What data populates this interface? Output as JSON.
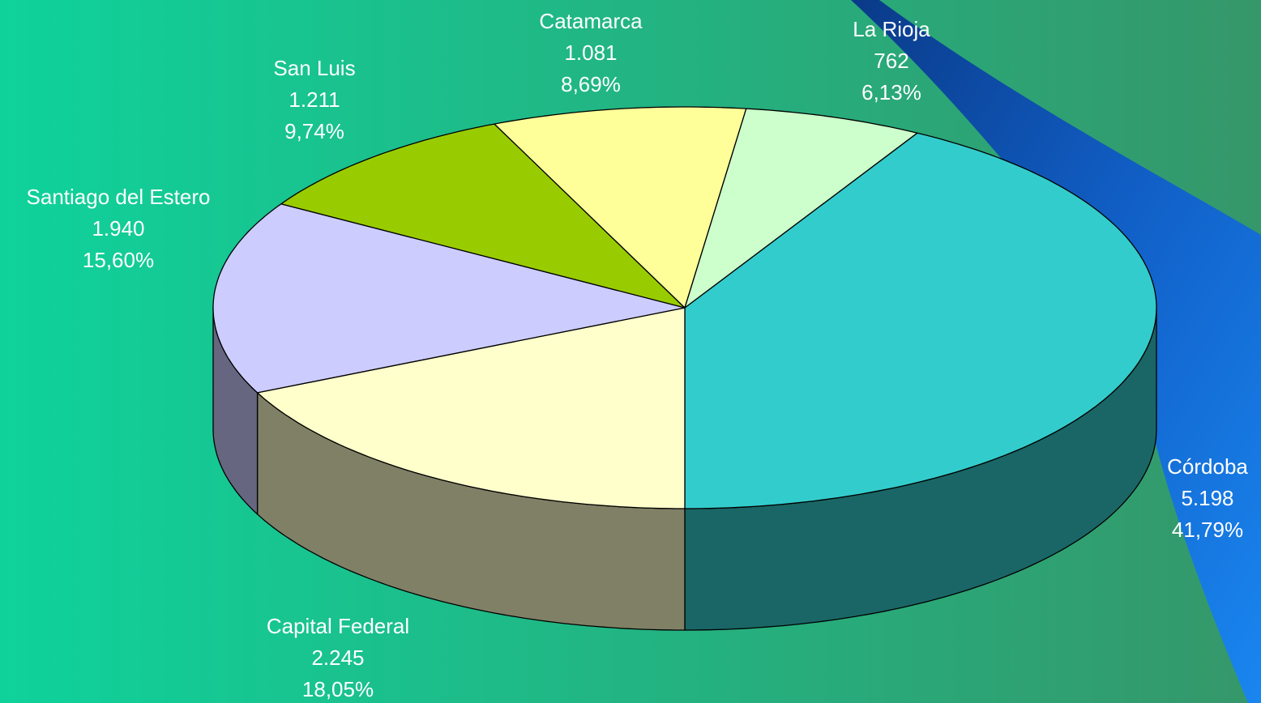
{
  "chart_data": {
    "type": "pie",
    "categories": [
      "Córdoba",
      "Capital Federal",
      "Santiago del Estero",
      "San Luis",
      "Catamarca",
      "La Rioja"
    ],
    "values": [
      5198,
      2245,
      1940,
      1211,
      1081,
      762
    ],
    "value_labels": [
      "5.198",
      "2.245",
      "1.940",
      "1.211",
      "1.081",
      "762"
    ],
    "percents": [
      41.79,
      18.05,
      15.6,
      9.74,
      8.69,
      6.13
    ],
    "percent_labels": [
      "41,79%",
      "18,05%",
      "15,60%",
      "9,74%",
      "8,69%",
      "6,13%"
    ],
    "colors": [
      "#33cccc",
      "#ffffcc",
      "#ccccff",
      "#99cc00",
      "#ffff99",
      "#ccffcc"
    ]
  }
}
